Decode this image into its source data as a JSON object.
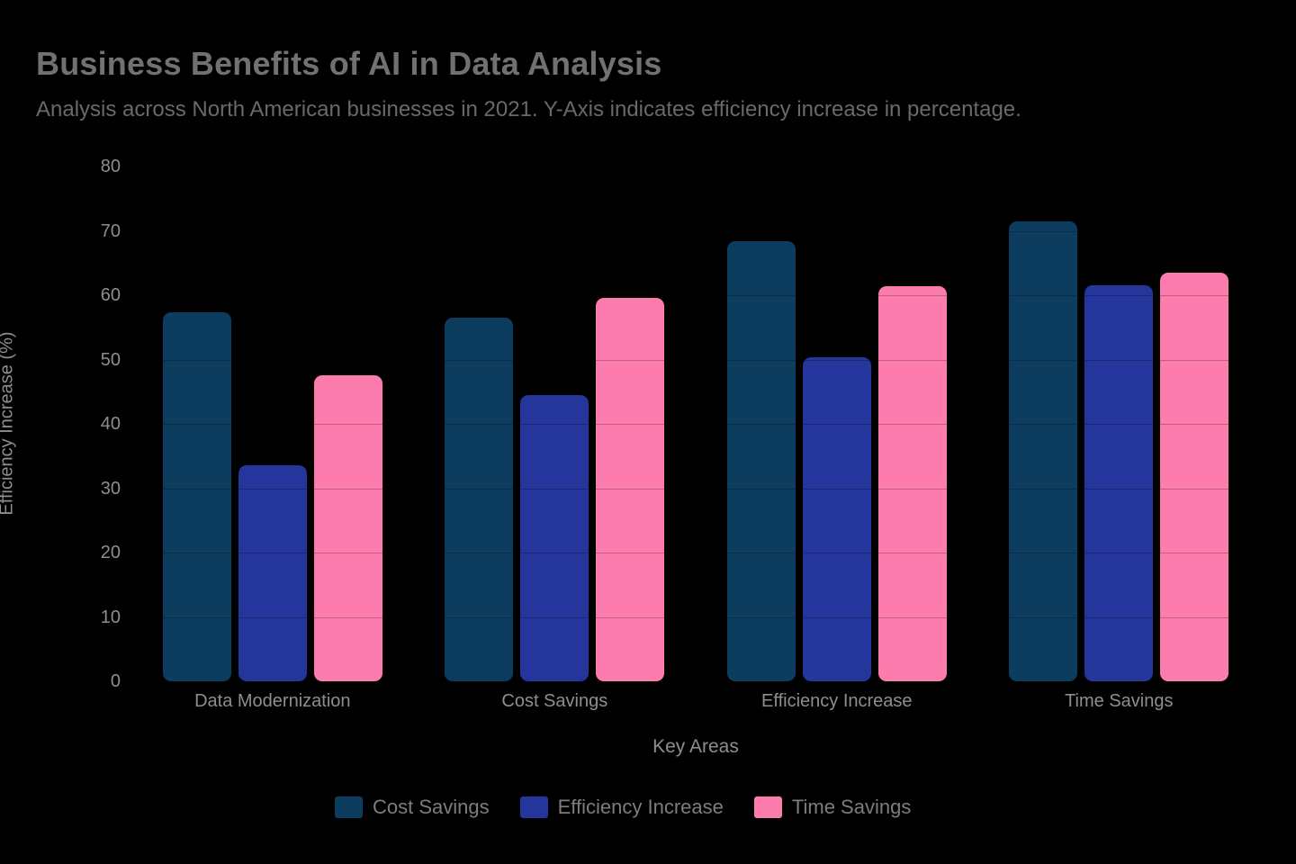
{
  "header": {
    "title": "Business Benefits of AI in Data Analysis",
    "subtitle": "Analysis across North American businesses in 2021. Y-Axis indicates efficiency increase in percentage."
  },
  "chart_data": {
    "type": "bar",
    "title": "Business Benefits of AI in Data Analysis",
    "subtitle": "Analysis across North American businesses in 2021. Y-Axis indicates efficiency increase in percentage.",
    "categories": [
      "Data Modernization",
      "Cost Savings",
      "Efficiency Increase",
      "Time Savings"
    ],
    "series": [
      {
        "name": "Cost Savings",
        "color": "#0C3C5E",
        "values": [
          57.4,
          56.5,
          68.4,
          71.5
        ]
      },
      {
        "name": "Efficiency Increase",
        "color": "#24359B",
        "values": [
          33.6,
          44.5,
          50.4,
          61.5
        ]
      },
      {
        "name": "Time Savings",
        "color": "#FB7CAD",
        "values": [
          47.6,
          59.6,
          61.4,
          63.5
        ]
      }
    ],
    "xlabel": "Key Areas",
    "ylabel": "Efficiency Increase (%)",
    "ylim": [
      0,
      80
    ],
    "ytick_step": 10,
    "yticks": [
      0,
      10,
      20,
      30,
      40,
      50,
      60,
      70,
      80
    ],
    "grid": true,
    "gridline_color": "rgba(0,0,0,0.24)",
    "background_color": "#000000",
    "text_color": "#8e8e8e",
    "legend_position": "bottom"
  }
}
